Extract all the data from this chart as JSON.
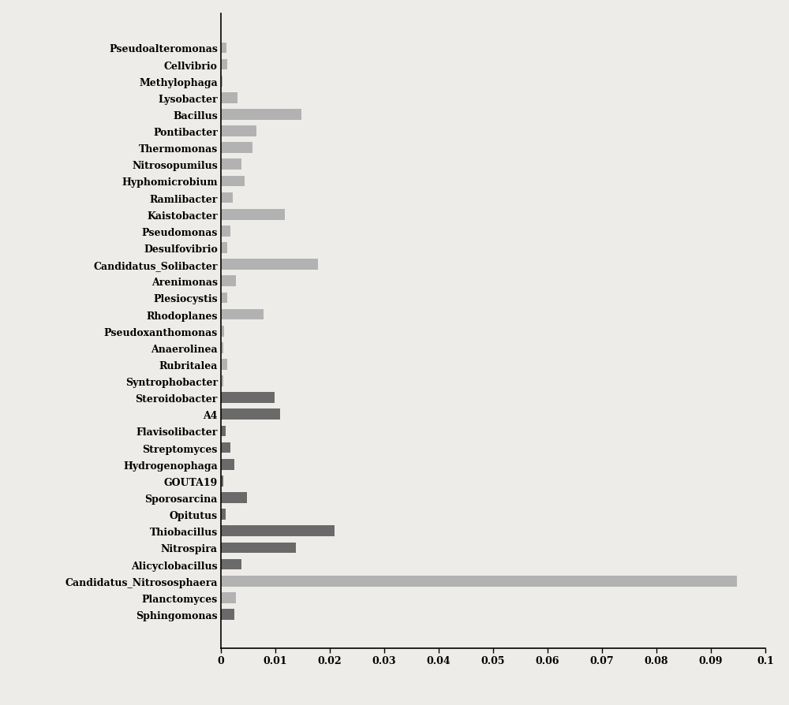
{
  "categories": [
    "Pseudoalteromonas",
    "Cellvibrio",
    "Methylophaga",
    "Lysobacter",
    "Bacillus",
    "Pontibacter",
    "Thermomonas",
    "Nitrosopumilus",
    "Hyphomicrobium",
    "Ramlibacter",
    "Kaistobacter",
    "Pseudomonas",
    "Desulfovibrio",
    "Candidatus_Solibacter",
    "Arenimonas",
    "Plesiocystis",
    "Rhodoplanes",
    "Pseudoxanthomonas",
    "Anaerolinea",
    "Rubritalea",
    "Syntrophobacter",
    "Steroidobacter",
    "A4",
    "Flavisolibacter",
    "Streptomyces",
    "Hydrogenophaga",
    "GOUTA19",
    "Sporosarcina",
    "Opitutus",
    "Thiobacillus",
    "Nitrospira",
    "Alicyclobacillus",
    "Candidatus_Nitrososphaera",
    "Planctomyces",
    "Sphingomonas"
  ],
  "values": [
    0.001,
    0.0012,
    0.0003,
    0.003,
    0.0148,
    0.0065,
    0.0058,
    0.0038,
    0.0043,
    0.0022,
    0.0118,
    0.0018,
    0.0012,
    0.0178,
    0.0028,
    0.0012,
    0.0078,
    0.0006,
    0.0004,
    0.0012,
    0.0004,
    0.0098,
    0.0108,
    0.0008,
    0.0018,
    0.0025,
    0.0004,
    0.0048,
    0.0008,
    0.0208,
    0.0138,
    0.0038,
    0.0948,
    0.0028,
    0.0025
  ],
  "bar_colors": [
    "#b2b2b2",
    "#b2b2b2",
    "#b2b2b2",
    "#b2b2b2",
    "#b2b2b2",
    "#b2b2b2",
    "#b2b2b2",
    "#b2b2b2",
    "#b2b2b2",
    "#b2b2b2",
    "#b2b2b2",
    "#b2b2b2",
    "#b2b2b2",
    "#b2b2b2",
    "#b2b2b2",
    "#b2b2b2",
    "#b2b2b2",
    "#b2b2b2",
    "#b2b2b2",
    "#b2b2b2",
    "#b2b2b2",
    "#6a6a6a",
    "#6a6a6a",
    "#6a6a6a",
    "#6a6a6a",
    "#6a6a6a",
    "#6a6a6a",
    "#6a6a6a",
    "#6a6a6a",
    "#6a6a6a",
    "#6a6a6a",
    "#6a6a6a",
    "#b2b2b2",
    "#b2b2b2",
    "#6a6a6a"
  ],
  "xlim": [
    0,
    0.1
  ],
  "xticks": [
    0,
    0.01,
    0.02,
    0.03,
    0.04,
    0.05,
    0.06,
    0.07,
    0.08,
    0.09,
    0.1
  ],
  "xtick_labels": [
    "0",
    "0.01",
    "0.02",
    "0.03",
    "0.04",
    "0.05",
    "0.06",
    "0.07",
    "0.08",
    "0.09",
    "0.1"
  ],
  "background_color": "#eeece8",
  "figure_width": 10.0,
  "figure_height": 8.95,
  "label_fontsize": 9,
  "tick_fontsize": 9,
  "bar_height": 0.65
}
